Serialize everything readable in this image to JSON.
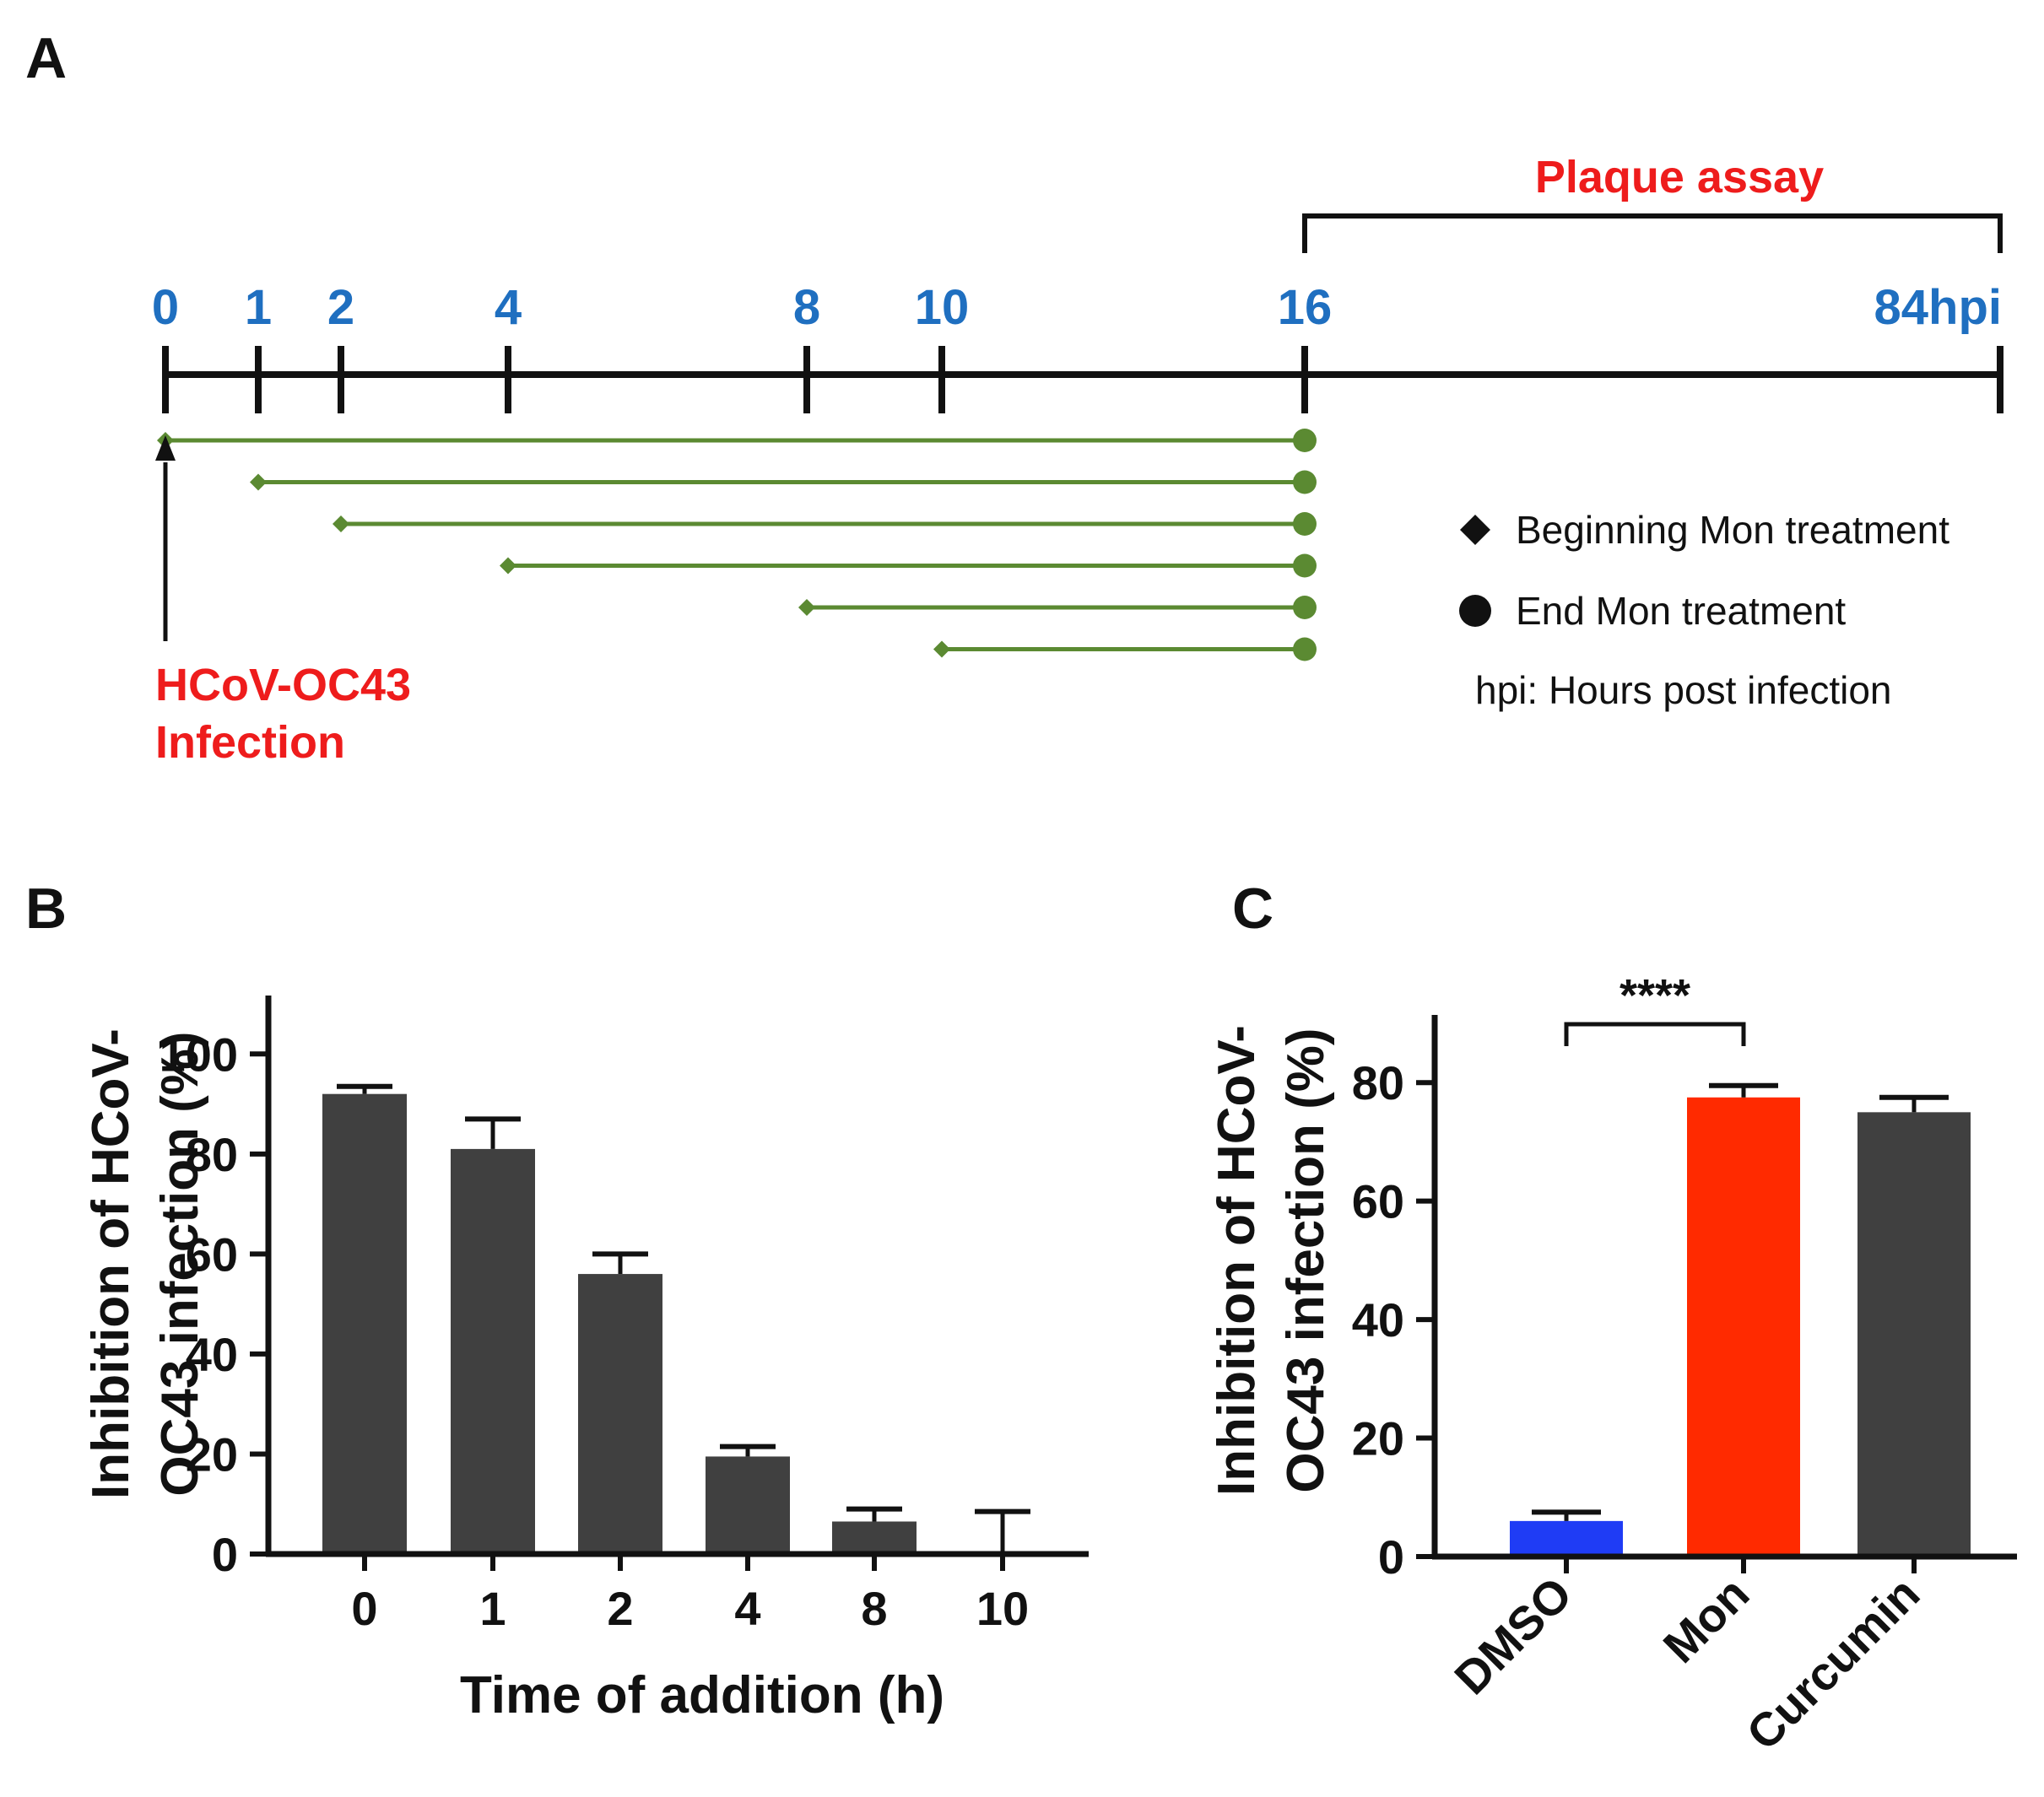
{
  "panels": {
    "a": "A",
    "b": "B",
    "c": "C"
  },
  "colors": {
    "timeline_tick_label": "#1f6fc0",
    "highlight_red": "#ee1c1c",
    "treatment_green": "#5b8a32",
    "bar_dark": "#404040",
    "bar_blue": "#1f3cf5",
    "bar_red": "#ff2a00",
    "axis": "#111111"
  },
  "timeline": {
    "plaque_label": "Plaque assay",
    "ticks": [
      {
        "label": "0",
        "h": 0
      },
      {
        "label": "1",
        "h": 1
      },
      {
        "label": "2",
        "h": 2
      },
      {
        "label": "4",
        "h": 4
      },
      {
        "label": "8",
        "h": 8
      },
      {
        "label": "10",
        "h": 10
      },
      {
        "label": "16",
        "h": 16
      },
      {
        "label": "84hpi",
        "h": 84
      }
    ],
    "treatments": [
      {
        "start": 0,
        "end": 16
      },
      {
        "start": 1,
        "end": 16
      },
      {
        "start": 2,
        "end": 16
      },
      {
        "start": 4,
        "end": 16
      },
      {
        "start": 8,
        "end": 16
      },
      {
        "start": 10,
        "end": 16
      }
    ],
    "infection_line1": "HCoV-OC43",
    "infection_line2": "Infection",
    "legend": {
      "begin": "Beginning Mon treatment",
      "end": "End Mon treatment",
      "hpi": "hpi: Hours post infection"
    }
  },
  "chart_data": [
    {
      "type": "bar",
      "panel": "B",
      "categories": [
        "0",
        "1",
        "2",
        "4",
        "8",
        "10"
      ],
      "values": [
        92,
        81,
        56,
        19.5,
        6.5,
        0.5
      ],
      "errors": [
        1.5,
        6,
        4,
        2,
        2.5,
        8
      ],
      "xlabel": "Time of addition (h)",
      "ylabel_line1": "Inhibition of HCoV-",
      "ylabel_line2": "OC43 infection (%)",
      "ylim": [
        0,
        110
      ],
      "yticks": [
        0,
        20,
        40,
        60,
        80,
        100
      ]
    },
    {
      "type": "bar",
      "panel": "C",
      "categories": [
        "DMSO",
        "Mon",
        "Curcumin"
      ],
      "values": [
        6,
        77.5,
        75
      ],
      "errors": [
        1.5,
        2,
        2.5
      ],
      "xlabel": "",
      "ylabel_line1": "Inhibition of HCoV-",
      "ylabel_line2": "OC43 infection (%)",
      "ylim": [
        0,
        90
      ],
      "yticks": [
        0,
        20,
        40,
        60,
        80
      ],
      "significance": {
        "from": "DMSO",
        "to": "Mon",
        "label": "****"
      }
    }
  ]
}
